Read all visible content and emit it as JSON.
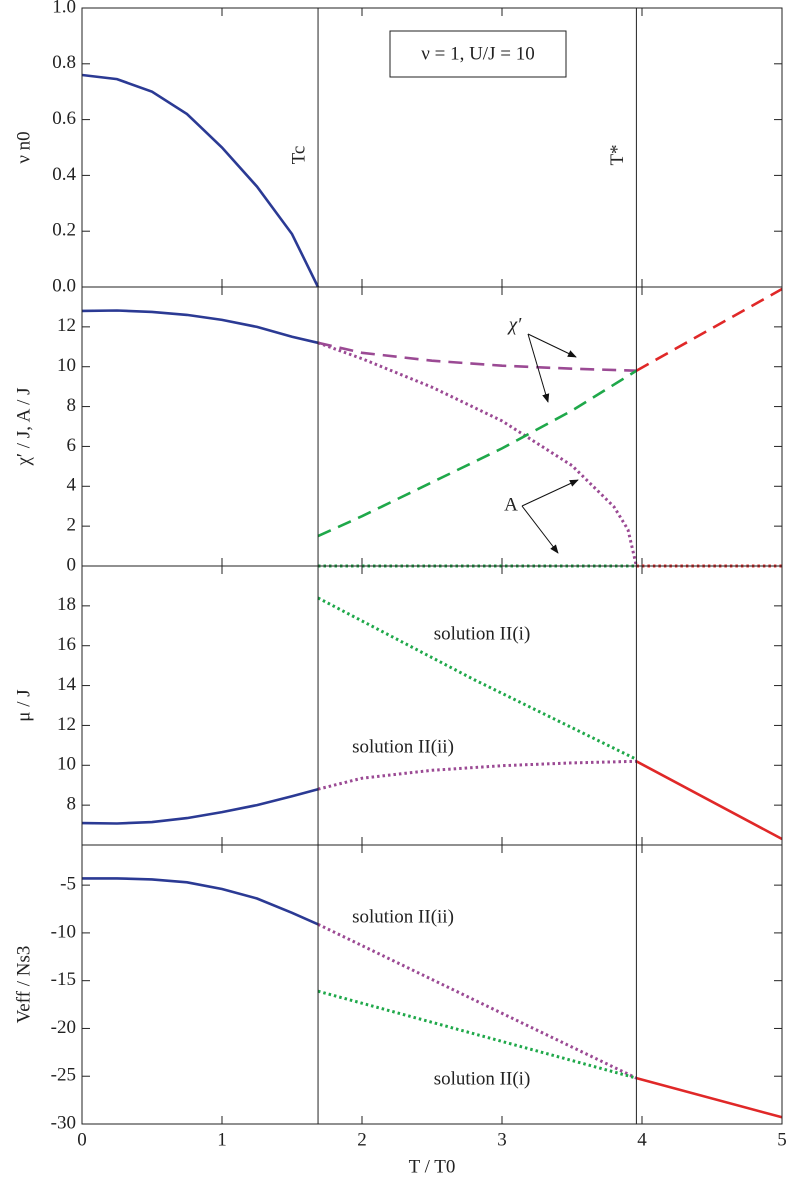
{
  "chart_data": [
    {
      "type": "line",
      "ylabel": "ν n0",
      "xlim": [
        0,
        5
      ],
      "ylim": [
        0,
        1
      ],
      "yticks": [
        {
          "value": 0,
          "label": "0.0"
        },
        0.2,
        0.4,
        0.6,
        0.8,
        {
          "value": 1,
          "label": "1.0"
        }
      ],
      "vlines": [
        1.686,
        3.96
      ],
      "vline_labels": [
        "Tc",
        "T*"
      ],
      "box_label": "ν = 1, U/J = 10",
      "series": [
        {
          "color": "#2b3a94",
          "style": "solid",
          "x": [
            0,
            0.25,
            0.5,
            0.75,
            1,
            1.25,
            1.5,
            1.686
          ],
          "values": [
            0.76,
            0.745,
            0.7,
            0.62,
            0.5,
            0.36,
            0.19,
            0
          ]
        }
      ]
    },
    {
      "type": "line",
      "ylabel": "χ′ / J, A / J",
      "xlim": [
        0,
        5
      ],
      "ylim": [
        0,
        14
      ],
      "yticks": [
        0,
        2,
        4,
        6,
        8,
        10,
        12
      ],
      "annotations": [
        "χ′",
        "A"
      ],
      "series": [
        {
          "color": "#2b3a94",
          "style": "solid",
          "x": [
            0,
            0.25,
            0.5,
            0.75,
            1,
            1.25,
            1.5,
            1.686
          ],
          "values": [
            12.8,
            12.82,
            12.75,
            12.6,
            12.35,
            12.0,
            11.5,
            11.2
          ]
        },
        {
          "color": "#9b4a94",
          "style": "dashed",
          "x": [
            1.686,
            2,
            2.5,
            3,
            3.5,
            3.96
          ],
          "values": [
            11.2,
            10.7,
            10.3,
            10.05,
            9.9,
            9.8
          ]
        },
        {
          "color": "#9b4a94",
          "style": "dotted",
          "x": [
            1.686,
            2,
            2.5,
            3,
            3.5,
            3.8,
            3.9,
            3.96
          ],
          "values": [
            11.2,
            10.4,
            8.97,
            7.28,
            5.04,
            2.97,
            1.82,
            0
          ]
        },
        {
          "color": "#1fa84a",
          "style": "dashed",
          "x": [
            1.686,
            2,
            2.5,
            3,
            3.5,
            3.96
          ],
          "values": [
            1.5,
            2.5,
            4.2,
            5.9,
            7.8,
            9.8
          ]
        },
        {
          "color": "#1fa84a",
          "style": "dotted",
          "x": [
            1.686,
            3.96
          ],
          "values": [
            0,
            0
          ]
        },
        {
          "color": "#e02828",
          "style": "dashed",
          "x": [
            3.96,
            5
          ],
          "values": [
            9.8,
            13.9
          ]
        },
        {
          "color": "#e02828",
          "style": "dotted",
          "x": [
            3.96,
            5
          ],
          "values": [
            0,
            0
          ]
        }
      ]
    },
    {
      "type": "line",
      "ylabel": "μ / J",
      "xlim": [
        0,
        5
      ],
      "ylim": [
        6,
        20
      ],
      "yticks": [
        8,
        10,
        12,
        14,
        16,
        18
      ],
      "annotations": [
        "solution II(i)",
        "solution II(ii)"
      ],
      "series": [
        {
          "color": "#2b3a94",
          "style": "solid",
          "x": [
            0,
            0.25,
            0.5,
            0.75,
            1,
            1.25,
            1.5,
            1.686
          ],
          "values": [
            7.1,
            7.08,
            7.15,
            7.35,
            7.65,
            8.0,
            8.45,
            8.8
          ]
        },
        {
          "color": "#9b4a94",
          "style": "dotted",
          "x": [
            1.686,
            2,
            2.5,
            3,
            3.5,
            3.96
          ],
          "values": [
            8.8,
            9.35,
            9.75,
            9.98,
            10.12,
            10.2
          ]
        },
        {
          "color": "#1fa84a",
          "style": "dotted",
          "x": [
            1.686,
            2.8,
            3.96
          ],
          "values": [
            18.4,
            14.3,
            10.3
          ]
        },
        {
          "color": "#e02828",
          "style": "solid",
          "x": [
            3.96,
            5
          ],
          "values": [
            10.2,
            6.3
          ]
        }
      ]
    },
    {
      "type": "line",
      "ylabel": "Veff / Ns3",
      "xlabel": "T / T0",
      "xlim": [
        0,
        5
      ],
      "ylim": [
        -30,
        -0.8
      ],
      "xticks": [
        0,
        1,
        2,
        3,
        4,
        5
      ],
      "yticks": [
        -5,
        -10,
        -15,
        -20,
        -25,
        -30
      ],
      "annotations": [
        "solution II(ii)",
        "solution II(i)"
      ],
      "series": [
        {
          "color": "#2b3a94",
          "style": "solid",
          "x": [
            0,
            0.25,
            0.5,
            0.75,
            1,
            1.25,
            1.5,
            1.686
          ],
          "values": [
            -4.3,
            -4.3,
            -4.4,
            -4.7,
            -5.4,
            -6.4,
            -7.9,
            -9.1
          ]
        },
        {
          "color": "#9b4a94",
          "style": "dotted",
          "x": [
            1.686,
            2.8,
            3.96
          ],
          "values": [
            -9.1,
            -17.0,
            -25.2
          ]
        },
        {
          "color": "#1fa84a",
          "style": "dotted",
          "x": [
            1.686,
            3.96
          ],
          "values": [
            -16.1,
            -25.2
          ]
        },
        {
          "color": "#e02828",
          "style": "solid",
          "x": [
            3.96,
            5
          ],
          "values": [
            -25.2,
            -29.3
          ]
        }
      ]
    }
  ]
}
